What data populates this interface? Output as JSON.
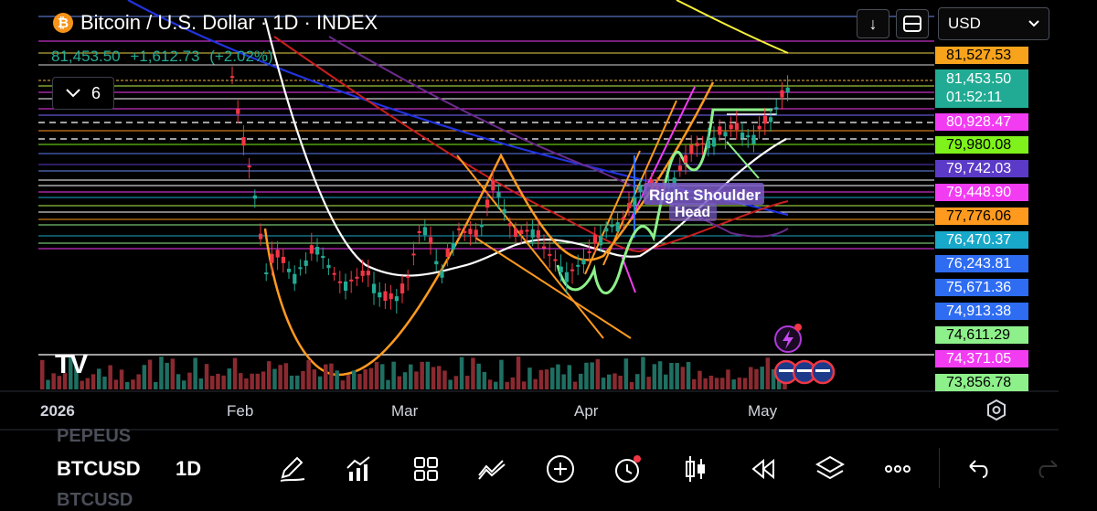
{
  "header": {
    "title": "Bitcoin / U.S. Dollar · 1D · INDEX",
    "logo_glyph": "₿",
    "price": "81,453.50",
    "change": "+1,612.73",
    "change_pct": "(+2.02%)",
    "indicator_count": "6"
  },
  "toolbar": {
    "currency": "USD",
    "download_icon": "↓"
  },
  "price_axis": {
    "labels": [
      {
        "value": "81,527.53",
        "bg": "#f7a31c",
        "fg": "#000000"
      },
      {
        "value": "81,453.50",
        "sub": "01:52:11",
        "bg": "#22ab94",
        "fg": "#ffffff",
        "current": true
      },
      {
        "value": "80,928.47",
        "bg": "#f23cf2",
        "fg": "#ffffff"
      },
      {
        "value": "79,980.08",
        "bg": "#7ef21a",
        "fg": "#000000"
      },
      {
        "value": "79,742.03",
        "bg": "#5b3ac7",
        "fg": "#ffffff"
      },
      {
        "value": "79,448.90",
        "bg": "#f23cf2",
        "fg": "#ffffff"
      },
      {
        "value": "77,776.06",
        "bg": "#ff9a1f",
        "fg": "#000000"
      },
      {
        "value": "76,470.37",
        "bg": "#18a8c9",
        "fg": "#ffffff"
      },
      {
        "value": "76,243.81",
        "bg": "#2e6cf2",
        "fg": "#ffffff"
      },
      {
        "value": "75,671.36",
        "bg": "#2e6cf2",
        "fg": "#ffffff"
      },
      {
        "value": "74,913.38",
        "bg": "#2e6cf2",
        "fg": "#ffffff"
      },
      {
        "value": "74,611.29",
        "bg": "#8ef08a",
        "fg": "#000000"
      },
      {
        "value": "74,371.05",
        "bg": "#f23cf2",
        "fg": "#ffffff"
      },
      {
        "value": "73,856.78",
        "bg": "#8ef08a",
        "fg": "#000000"
      }
    ]
  },
  "time_axis": {
    "labels": [
      "2026",
      "Feb",
      "Mar",
      "Apr",
      "May"
    ]
  },
  "annotations": {
    "right_shoulder": "Right Shoulder",
    "head": "Head"
  },
  "bottom": {
    "symbol": "BTCUSD",
    "timeframe": "1D",
    "ghost_above": "PEPEUS",
    "ghost_below": "BTCUSD"
  },
  "colors": {
    "up": "#22ab94",
    "down": "#f23645",
    "bg": "#000000"
  }
}
